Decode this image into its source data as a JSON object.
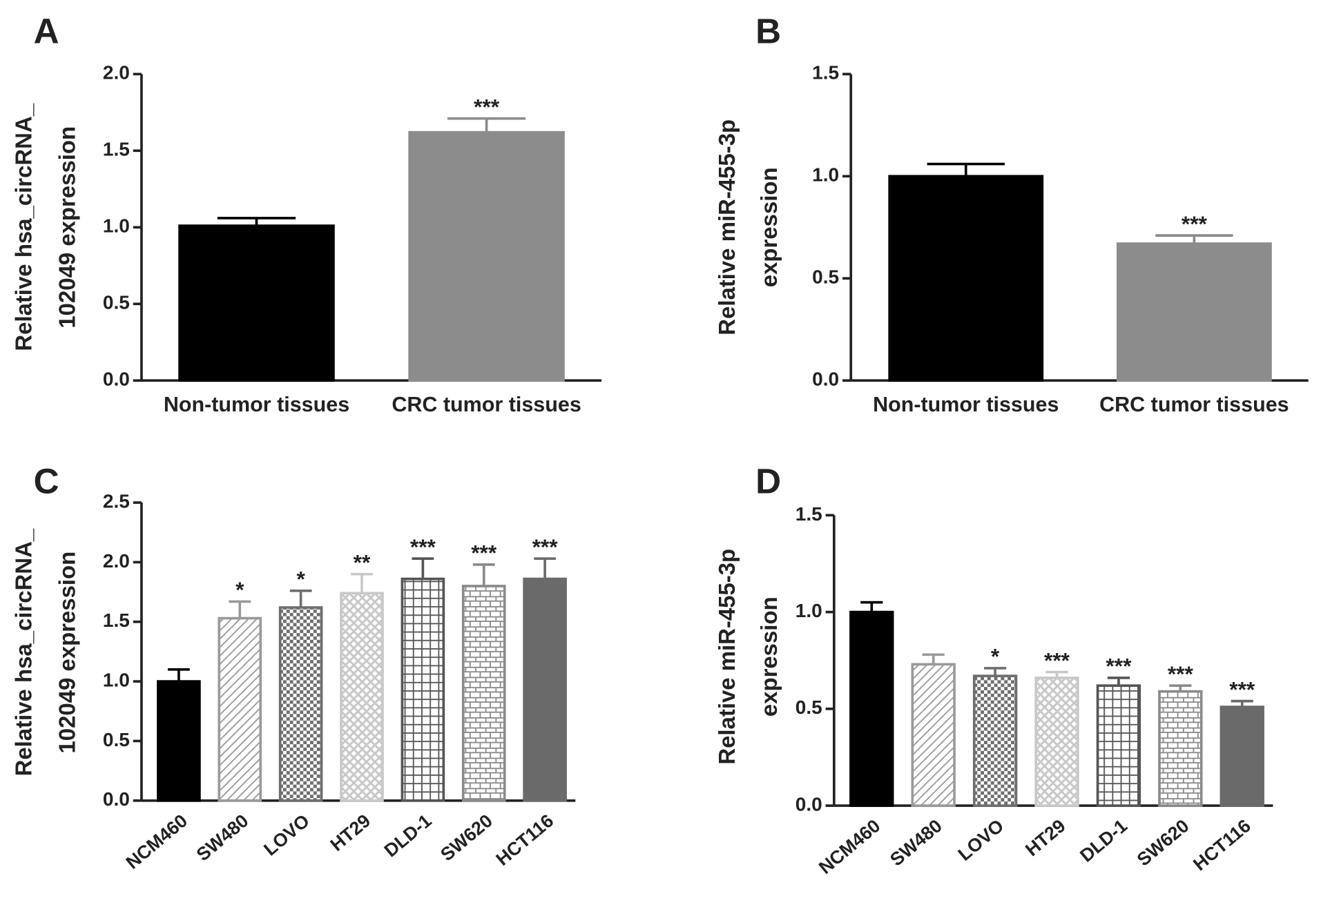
{
  "chart_data": [
    {
      "type": "bar",
      "label": "A",
      "ylabel": [
        "Relative hsa_circRNA_",
        "102049 expression"
      ],
      "categories": [
        "Non-tumor tissues",
        "CRC tumor tissues"
      ],
      "values": [
        1.01,
        1.62
      ],
      "errors": [
        0.05,
        0.09
      ],
      "annotations": [
        null,
        "***"
      ],
      "colors": [
        "#000000",
        "#8c8c8c"
      ],
      "patterns": [
        "solid",
        "solid"
      ],
      "ylim": [
        0,
        2
      ],
      "yticks": [
        {
          "value": 0,
          "label": "0.0"
        },
        {
          "value": 0.5,
          "label": "0.5"
        },
        {
          "value": 1,
          "label": "1.0"
        },
        {
          "value": 1.5,
          "label": "1.5"
        },
        {
          "value": 2,
          "label": "2.0"
        }
      ]
    },
    {
      "type": "bar",
      "label": "B",
      "ylabel": [
        "Relative miR-455-3p",
        "expression"
      ],
      "categories": [
        "Non-tumor tissues",
        "CRC tumor tissues"
      ],
      "values": [
        1.0,
        0.67
      ],
      "errors": [
        0.06,
        0.04
      ],
      "annotations": [
        null,
        "***"
      ],
      "colors": [
        "#000000",
        "#8c8c8c"
      ],
      "patterns": [
        "solid",
        "solid"
      ],
      "ylim": [
        0,
        1.5
      ],
      "yticks": [
        {
          "value": 0,
          "label": "0.0"
        },
        {
          "value": 0.5,
          "label": "0.5"
        },
        {
          "value": 1,
          "label": "1.0"
        },
        {
          "value": 1.5,
          "label": "1.5"
        }
      ]
    },
    {
      "type": "bar",
      "label": "C",
      "ylabel": [
        "Relative hsa_circRNA_",
        "102049 expression"
      ],
      "categories": [
        "NCM460",
        "SW480",
        "LOVO",
        "HT29",
        "DLD-1",
        "SW620",
        "HCT116"
      ],
      "values": [
        1.0,
        1.53,
        1.62,
        1.74,
        1.86,
        1.8,
        1.86
      ],
      "errors": [
        0.1,
        0.14,
        0.14,
        0.16,
        0.17,
        0.18,
        0.17
      ],
      "annotations": [
        null,
        "*",
        "*",
        "**",
        "***",
        "***",
        "***"
      ],
      "colors": [
        "#000000",
        "#9a9a9a",
        "#6e6e6e",
        "#c8c8c8",
        "#555555",
        "#8a8a8a",
        "#6a6a6a"
      ],
      "patterns": [
        "solid",
        "diagonal",
        "checker",
        "crosshatch",
        "grid",
        "brick",
        "diamond"
      ],
      "ylim": [
        0,
        2.5
      ],
      "yticks": [
        {
          "value": 0,
          "label": "0.0"
        },
        {
          "value": 0.5,
          "label": "0.5"
        },
        {
          "value": 1,
          "label": "1.0"
        },
        {
          "value": 1.5,
          "label": "1.5"
        },
        {
          "value": 2,
          "label": "2.0"
        },
        {
          "value": 2.5,
          "label": "2.5"
        }
      ]
    },
    {
      "type": "bar",
      "label": "D",
      "ylabel": [
        "Relative miR-455-3p",
        "expression"
      ],
      "categories": [
        "NCM460",
        "SW480",
        "LOVO",
        "HT29",
        "DLD-1",
        "SW620",
        "HCT116"
      ],
      "values": [
        1.0,
        0.73,
        0.67,
        0.66,
        0.62,
        0.59,
        0.51
      ],
      "errors": [
        0.05,
        0.05,
        0.04,
        0.03,
        0.04,
        0.03,
        0.03
      ],
      "annotations": [
        null,
        null,
        "*",
        "***",
        "***",
        "***",
        "***"
      ],
      "colors": [
        "#000000",
        "#9a9a9a",
        "#6e6e6e",
        "#c8c8c8",
        "#555555",
        "#8a8a8a",
        "#6a6a6a"
      ],
      "patterns": [
        "solid",
        "diagonal",
        "checker",
        "crosshatch",
        "grid",
        "brick",
        "diamond"
      ],
      "ylim": [
        0,
        1.5
      ],
      "yticks": [
        {
          "value": 0,
          "label": "0.0"
        },
        {
          "value": 0.5,
          "label": "0.5"
        },
        {
          "value": 1,
          "label": "1.0"
        },
        {
          "value": 1.5,
          "label": "1.5"
        }
      ]
    }
  ]
}
